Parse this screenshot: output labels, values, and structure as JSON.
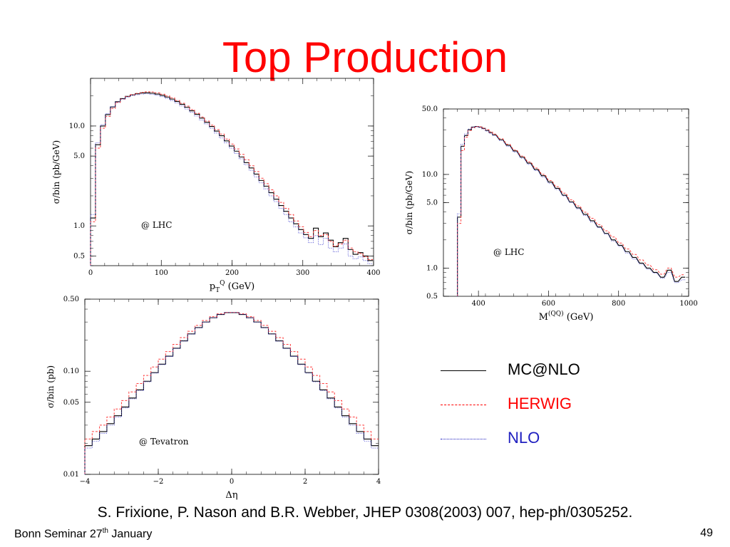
{
  "slide": {
    "title": "Top Production",
    "citation": "S. Frixione, P. Nason and B.R. Webber, JHEP 0308(2003) 007, hep-ph/0305252.",
    "footer_left_pre": "Bonn Seminar 27",
    "footer_left_sup": "th",
    "footer_left_post": " January",
    "page_number": "49"
  },
  "legend": [
    {
      "label": "MC@NLO",
      "color": "#000000",
      "text_color": "#000000",
      "style": "solid"
    },
    {
      "label": "HERWIG",
      "color": "#ff0000",
      "text_color": "#ff0000",
      "style": "dashed"
    },
    {
      "label": "NLO",
      "color": "#2020c0",
      "text_color": "#2020c0",
      "style": "dotted"
    }
  ],
  "chart_data": [
    {
      "id": "pt",
      "type": "line",
      "annotation": "@ LHC",
      "xlabel": "p_T^Q (GeV)",
      "ylabel": "σ/bin (pb/GeV)",
      "xlim": [
        0,
        400
      ],
      "ylim": [
        0.4,
        30
      ],
      "yscale": "log",
      "xticks": [
        0,
        100,
        200,
        300,
        400
      ],
      "yticks": [
        0.5,
        1.0,
        5.0,
        10.0
      ],
      "ytick_labels": [
        "0.5",
        "1.0",
        "5.0",
        "10.0"
      ],
      "step": true,
      "x": [
        0,
        7,
        14,
        21,
        28,
        35,
        42,
        49,
        56,
        63,
        70,
        77,
        84,
        91,
        98,
        105,
        112,
        119,
        126,
        133,
        140,
        147,
        154,
        161,
        168,
        175,
        182,
        189,
        196,
        203,
        210,
        217,
        224,
        231,
        238,
        245,
        252,
        259,
        266,
        273,
        280,
        287,
        294,
        301,
        308,
        315,
        322,
        329,
        336,
        343,
        350,
        357,
        364,
        371,
        378,
        385,
        392
      ],
      "series": [
        {
          "name": "MC@NLO",
          "values": [
            1.2,
            6.5,
            10.0,
            13.0,
            15.5,
            17.5,
            18.8,
            19.8,
            20.5,
            21.0,
            21.4,
            21.5,
            21.3,
            20.9,
            20.3,
            19.5,
            18.6,
            17.6,
            16.5,
            15.4,
            14.2,
            13.1,
            12.0,
            10.9,
            9.9,
            8.9,
            8.0,
            7.1,
            6.3,
            5.6,
            4.9,
            4.3,
            3.8,
            3.3,
            2.85,
            2.5,
            2.15,
            1.85,
            1.6,
            1.4,
            1.2,
            1.05,
            0.92,
            0.82,
            0.75,
            0.95,
            0.78,
            0.85,
            0.72,
            0.62,
            0.68,
            0.75,
            0.58,
            0.52,
            0.54,
            0.5,
            0.45
          ]
        },
        {
          "name": "HERWIG",
          "values": [
            1.1,
            6.0,
            9.5,
            12.5,
            15.0,
            17.2,
            18.6,
            19.7,
            20.6,
            21.2,
            21.7,
            22.0,
            21.9,
            21.5,
            20.8,
            20.0,
            19.1,
            18.0,
            16.9,
            15.8,
            14.6,
            13.4,
            12.3,
            11.2,
            10.2,
            9.2,
            8.3,
            7.4,
            6.6,
            5.9,
            5.2,
            4.6,
            4.0,
            3.5,
            3.0,
            2.65,
            2.3,
            2.0,
            1.72,
            1.5,
            1.3,
            1.12,
            0.98,
            0.86,
            0.78,
            0.9,
            0.8,
            0.82,
            0.7,
            0.63,
            0.66,
            0.72,
            0.6,
            0.55,
            0.53,
            0.49,
            0.46
          ]
        },
        {
          "name": "NLO",
          "values": [
            1.3,
            6.8,
            10.3,
            13.3,
            15.6,
            17.4,
            18.6,
            19.5,
            20.2,
            20.6,
            20.9,
            21.0,
            20.8,
            20.3,
            19.7,
            18.9,
            18.0,
            17.0,
            15.9,
            14.8,
            13.7,
            12.6,
            11.5,
            10.5,
            9.5,
            8.5,
            7.6,
            6.8,
            6.0,
            5.3,
            4.7,
            4.1,
            3.6,
            3.1,
            2.7,
            2.35,
            2.0,
            1.75,
            1.5,
            1.3,
            1.1,
            0.98,
            0.85,
            0.76,
            0.68,
            0.8,
            0.65,
            0.75,
            0.6,
            0.55,
            0.6,
            0.66,
            0.5,
            0.47,
            0.49,
            0.45,
            0.42
          ]
        }
      ]
    },
    {
      "id": "mass",
      "type": "line",
      "annotation": "@ LHC",
      "xlabel": "M^(QQ) (GeV)",
      "ylabel": "σ/bin (pb/GeV)",
      "xlim": [
        300,
        1000
      ],
      "ylim": [
        0.5,
        50
      ],
      "yscale": "log",
      "xticks": [
        400,
        600,
        800,
        1000
      ],
      "yticks": [
        0.5,
        1.0,
        5.0,
        10.0,
        50.0
      ],
      "ytick_labels": [
        "0.5",
        "1.0",
        "5.0",
        "10.0",
        "50.0"
      ],
      "step": true,
      "x": [
        340,
        350,
        360,
        370,
        380,
        390,
        400,
        410,
        420,
        430,
        440,
        460,
        480,
        500,
        520,
        540,
        560,
        580,
        600,
        620,
        640,
        660,
        680,
        700,
        720,
        740,
        760,
        780,
        800,
        820,
        840,
        860,
        880,
        900,
        920,
        940,
        960,
        980
      ],
      "series": [
        {
          "name": "MC@NLO",
          "values": [
            3.5,
            20,
            26,
            30,
            32,
            32.5,
            32,
            31,
            29.5,
            28,
            26.5,
            23.5,
            20.5,
            17.8,
            15.3,
            13.2,
            11.3,
            9.7,
            8.3,
            7.1,
            6.0,
            5.1,
            4.4,
            3.75,
            3.2,
            2.75,
            2.35,
            2.0,
            1.75,
            1.5,
            1.3,
            1.13,
            1.0,
            0.9,
            0.8,
            0.95,
            0.72,
            0.8
          ]
        },
        {
          "name": "HERWIG",
          "values": [
            3.0,
            18,
            25,
            29.5,
            31.5,
            32.5,
            32.2,
            31.3,
            30,
            28.5,
            27,
            24,
            21,
            18.2,
            15.7,
            13.6,
            11.7,
            10.0,
            8.6,
            7.4,
            6.3,
            5.35,
            4.6,
            3.95,
            3.4,
            2.9,
            2.5,
            2.15,
            1.85,
            1.6,
            1.4,
            1.22,
            1.08,
            0.96,
            0.86,
            1.0,
            0.8,
            0.85
          ]
        },
        {
          "name": "NLO",
          "values": [
            3.8,
            21,
            27,
            30.5,
            32,
            32.3,
            31.7,
            30.6,
            29,
            27.5,
            26,
            23,
            20,
            17.3,
            14.9,
            12.8,
            11.0,
            9.4,
            8.0,
            6.9,
            5.9,
            5.0,
            4.3,
            3.65,
            3.1,
            2.7,
            2.3,
            1.95,
            1.7,
            1.45,
            1.25,
            1.1,
            0.97,
            0.88,
            0.78,
            0.9,
            0.7,
            0.75
          ]
        }
      ]
    },
    {
      "id": "deta",
      "type": "line",
      "annotation": "@ Tevatron",
      "xlabel": "Δη",
      "ylabel": "σ/bin (pb)",
      "xlim": [
        -4,
        4
      ],
      "ylim": [
        0.01,
        0.5
      ],
      "yscale": "log",
      "xticks": [
        -4,
        -2,
        0,
        2,
        4
      ],
      "xtick_labels": [
        "−4",
        "−2",
        "0",
        "2",
        "4"
      ],
      "yticks": [
        0.01,
        0.05,
        0.1,
        0.5
      ],
      "ytick_labels": [
        "0.01",
        "0.05",
        "0.10",
        "0.50"
      ],
      "step": true,
      "x": [
        -4.0,
        -3.8,
        -3.6,
        -3.4,
        -3.2,
        -3.0,
        -2.8,
        -2.6,
        -2.4,
        -2.2,
        -2.0,
        -1.8,
        -1.6,
        -1.4,
        -1.2,
        -1.0,
        -0.8,
        -0.6,
        -0.4,
        -0.2,
        0.0,
        0.2,
        0.4,
        0.6,
        0.8,
        1.0,
        1.2,
        1.4,
        1.6,
        1.8,
        2.0,
        2.2,
        2.4,
        2.6,
        2.8,
        3.0,
        3.2,
        3.4,
        3.6,
        3.8
      ],
      "series": [
        {
          "name": "MC@NLO",
          "values": [
            0.019,
            0.022,
            0.026,
            0.031,
            0.037,
            0.045,
            0.055,
            0.066,
            0.08,
            0.097,
            0.117,
            0.14,
            0.167,
            0.197,
            0.23,
            0.265,
            0.3,
            0.33,
            0.355,
            0.37,
            0.37,
            0.355,
            0.33,
            0.3,
            0.265,
            0.23,
            0.197,
            0.167,
            0.14,
            0.117,
            0.097,
            0.08,
            0.066,
            0.055,
            0.045,
            0.037,
            0.031,
            0.026,
            0.022,
            0.019
          ]
        },
        {
          "name": "HERWIG",
          "values": [
            0.022,
            0.026,
            0.03,
            0.036,
            0.043,
            0.052,
            0.063,
            0.076,
            0.091,
            0.11,
            0.131,
            0.155,
            0.182,
            0.212,
            0.244,
            0.278,
            0.31,
            0.338,
            0.36,
            0.372,
            0.372,
            0.36,
            0.338,
            0.31,
            0.278,
            0.244,
            0.212,
            0.182,
            0.155,
            0.131,
            0.11,
            0.091,
            0.076,
            0.063,
            0.052,
            0.043,
            0.036,
            0.03,
            0.026,
            0.022
          ]
        },
        {
          "name": "NLO",
          "values": [
            0.018,
            0.021,
            0.025,
            0.03,
            0.036,
            0.044,
            0.054,
            0.065,
            0.079,
            0.096,
            0.116,
            0.139,
            0.166,
            0.196,
            0.229,
            0.264,
            0.299,
            0.33,
            0.356,
            0.371,
            0.371,
            0.356,
            0.33,
            0.299,
            0.264,
            0.229,
            0.196,
            0.166,
            0.139,
            0.116,
            0.096,
            0.079,
            0.065,
            0.054,
            0.044,
            0.036,
            0.03,
            0.025,
            0.021,
            0.018
          ]
        }
      ]
    }
  ]
}
